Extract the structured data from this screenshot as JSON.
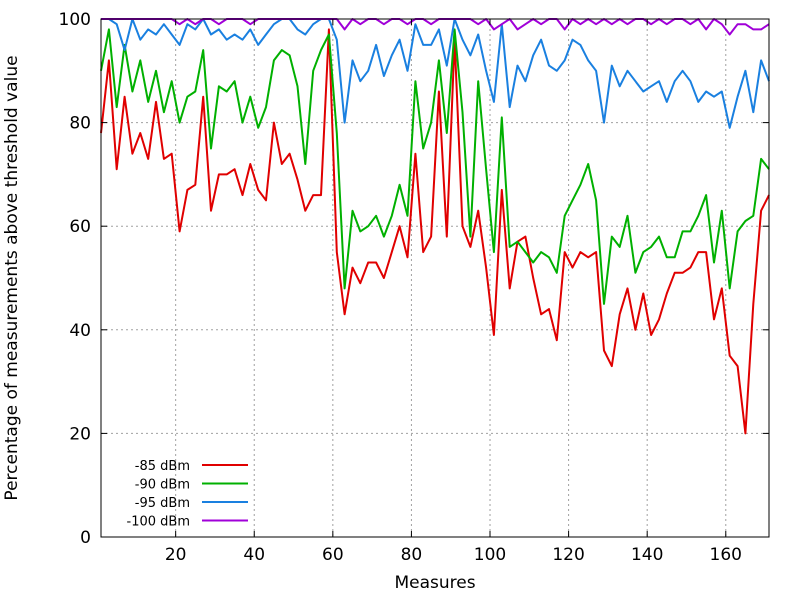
{
  "chart_data": {
    "type": "line",
    "title": "",
    "xlabel": "Measures",
    "ylabel": "Percentage of measurements above threshold value",
    "xlim": [
      1,
      171
    ],
    "ylim": [
      0,
      100
    ],
    "xticks": [
      20,
      40,
      60,
      80,
      100,
      120,
      140,
      160
    ],
    "yticks": [
      0,
      20,
      40,
      60,
      80,
      100
    ],
    "grid": true,
    "legend_position": "bottom-left",
    "series": [
      {
        "name": "-85 dBm",
        "color": "#e00000",
        "x": [
          1,
          3,
          5,
          7,
          9,
          11,
          13,
          15,
          17,
          19,
          21,
          23,
          25,
          27,
          29,
          31,
          33,
          35,
          37,
          39,
          41,
          43,
          45,
          47,
          49,
          51,
          53,
          55,
          57,
          59,
          61,
          63,
          65,
          67,
          69,
          71,
          73,
          75,
          77,
          79,
          81,
          83,
          85,
          87,
          89,
          91,
          93,
          95,
          97,
          99,
          101,
          103,
          105,
          107,
          109,
          111,
          113,
          115,
          117,
          119,
          121,
          123,
          125,
          127,
          129,
          131,
          133,
          135,
          137,
          139,
          141,
          143,
          145,
          147,
          149,
          151,
          153,
          155,
          157,
          159,
          161,
          163,
          165,
          167,
          169,
          171
        ],
        "y": [
          78,
          92,
          71,
          85,
          74,
          78,
          73,
          84,
          73,
          74,
          59,
          67,
          68,
          85,
          63,
          70,
          70,
          71,
          66,
          72,
          67,
          65,
          80,
          72,
          74,
          69,
          63,
          66,
          66,
          98,
          55,
          43,
          52,
          49,
          53,
          53,
          50,
          55,
          60,
          54,
          74,
          55,
          58,
          86,
          58,
          96,
          60,
          56,
          63,
          52,
          39,
          67,
          48,
          57,
          58,
          50,
          43,
          44,
          38,
          55,
          52,
          55,
          54,
          55,
          36,
          33,
          43,
          48,
          40,
          47,
          39,
          42,
          47,
          51,
          51,
          52,
          55,
          55,
          42,
          48,
          35,
          33,
          20,
          45,
          63,
          66
        ]
      },
      {
        "name": "-90 dBm",
        "color": "#00b000",
        "x": [
          1,
          3,
          5,
          7,
          9,
          11,
          13,
          15,
          17,
          19,
          21,
          23,
          25,
          27,
          29,
          31,
          33,
          35,
          37,
          39,
          41,
          43,
          45,
          47,
          49,
          51,
          53,
          55,
          57,
          59,
          61,
          63,
          65,
          67,
          69,
          71,
          73,
          75,
          77,
          79,
          81,
          83,
          85,
          87,
          89,
          91,
          93,
          95,
          97,
          99,
          101,
          103,
          105,
          107,
          109,
          111,
          113,
          115,
          117,
          119,
          121,
          123,
          125,
          127,
          129,
          131,
          133,
          135,
          137,
          139,
          141,
          143,
          145,
          147,
          149,
          151,
          153,
          155,
          157,
          159,
          161,
          163,
          165,
          167,
          169,
          171
        ],
        "y": [
          90,
          98,
          83,
          95,
          86,
          92,
          84,
          90,
          82,
          88,
          80,
          85,
          86,
          94,
          75,
          87,
          86,
          88,
          80,
          85,
          79,
          83,
          92,
          94,
          93,
          87,
          72,
          90,
          94,
          97,
          78,
          48,
          63,
          59,
          60,
          62,
          58,
          62,
          68,
          62,
          88,
          75,
          80,
          92,
          78,
          98,
          82,
          58,
          88,
          71,
          55,
          81,
          56,
          57,
          55,
          53,
          55,
          54,
          51,
          62,
          65,
          68,
          72,
          65,
          45,
          58,
          56,
          62,
          51,
          55,
          56,
          58,
          54,
          54,
          59,
          59,
          62,
          66,
          53,
          63,
          48,
          59,
          61,
          62,
          73,
          71
        ]
      },
      {
        "name": "-95 dBm",
        "color": "#1a80e0",
        "x": [
          1,
          3,
          5,
          7,
          9,
          11,
          13,
          15,
          17,
          19,
          21,
          23,
          25,
          27,
          29,
          31,
          33,
          35,
          37,
          39,
          41,
          43,
          45,
          47,
          49,
          51,
          53,
          55,
          57,
          59,
          61,
          63,
          65,
          67,
          69,
          71,
          73,
          75,
          77,
          79,
          81,
          83,
          85,
          87,
          89,
          91,
          93,
          95,
          97,
          99,
          101,
          103,
          105,
          107,
          109,
          111,
          113,
          115,
          117,
          119,
          121,
          123,
          125,
          127,
          129,
          131,
          133,
          135,
          137,
          139,
          141,
          143,
          145,
          147,
          149,
          151,
          153,
          155,
          157,
          159,
          161,
          163,
          165,
          167,
          169,
          171
        ],
        "y": [
          100,
          100,
          99,
          94,
          100,
          96,
          98,
          97,
          99,
          97,
          95,
          99,
          98,
          100,
          97,
          98,
          96,
          97,
          96,
          98,
          95,
          97,
          99,
          100,
          100,
          98,
          97,
          99,
          100,
          100,
          96,
          80,
          92,
          88,
          90,
          95,
          89,
          93,
          96,
          90,
          99,
          95,
          95,
          98,
          91,
          100,
          96,
          93,
          97,
          90,
          84,
          99,
          83,
          91,
          88,
          93,
          96,
          91,
          90,
          92,
          96,
          95,
          92,
          90,
          80,
          91,
          87,
          90,
          88,
          86,
          87,
          88,
          84,
          88,
          90,
          88,
          84,
          86,
          85,
          86,
          79,
          85,
          90,
          82,
          92,
          88
        ]
      },
      {
        "name": "-100 dBm",
        "color": "#a000d8",
        "x": [
          1,
          3,
          5,
          7,
          9,
          11,
          13,
          15,
          17,
          19,
          21,
          23,
          25,
          27,
          29,
          31,
          33,
          35,
          37,
          39,
          41,
          43,
          45,
          47,
          49,
          51,
          53,
          55,
          57,
          59,
          61,
          63,
          65,
          67,
          69,
          71,
          73,
          75,
          77,
          79,
          81,
          83,
          85,
          87,
          89,
          91,
          93,
          95,
          97,
          99,
          101,
          103,
          105,
          107,
          109,
          111,
          113,
          115,
          117,
          119,
          121,
          123,
          125,
          127,
          129,
          131,
          133,
          135,
          137,
          139,
          141,
          143,
          145,
          147,
          149,
          151,
          153,
          155,
          157,
          159,
          161,
          163,
          165,
          167,
          169,
          171
        ],
        "y": [
          100,
          100,
          100,
          100,
          100,
          100,
          100,
          100,
          100,
          100,
          99,
          100,
          99,
          100,
          100,
          99,
          100,
          100,
          100,
          99,
          100,
          100,
          100,
          100,
          100,
          100,
          100,
          100,
          100,
          100,
          100,
          98,
          100,
          99,
          100,
          100,
          99,
          100,
          100,
          99,
          100,
          100,
          99,
          100,
          100,
          100,
          100,
          100,
          99,
          100,
          98,
          99,
          100,
          98,
          99,
          100,
          99,
          100,
          100,
          98,
          100,
          99,
          100,
          99,
          100,
          99,
          100,
          99,
          100,
          100,
          99,
          100,
          99,
          100,
          100,
          99,
          100,
          98,
          100,
          99,
          97,
          99,
          99,
          98,
          98,
          99
        ]
      }
    ]
  }
}
